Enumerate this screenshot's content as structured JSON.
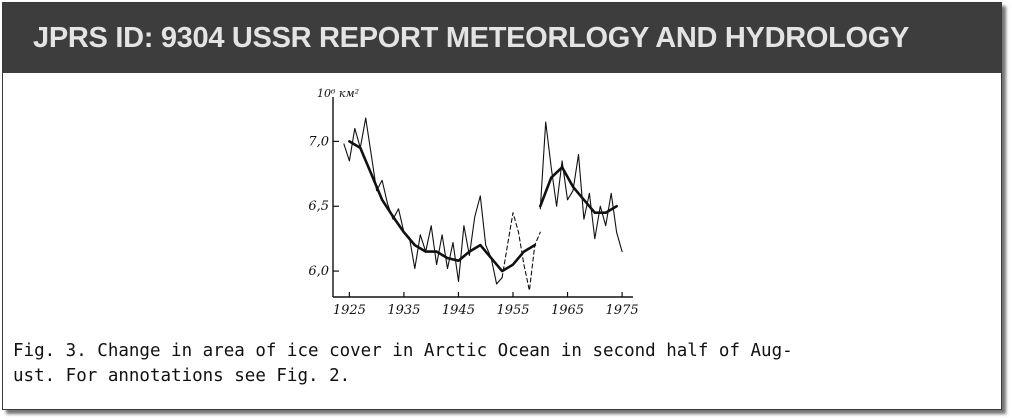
{
  "header": {
    "title": "JPRS ID: 9304 USSR REPORT METEORLOGY AND HYDROLOGY"
  },
  "figure": {
    "caption_line1": "Fig. 3. Change in area of ice cover in Arctic Ocean in second half of Aug-",
    "caption_line2": "ust. For annotations see Fig. 2."
  },
  "colors": {
    "header_bg": "#3d3d3d",
    "header_text": "#e4e4e4",
    "ink": "#111111"
  },
  "chart_data": {
    "type": "line",
    "title": "",
    "xlabel": "",
    "ylabel": "10⁶ км²",
    "xlim": [
      1922,
      1977
    ],
    "ylim": [
      5.8,
      7.25
    ],
    "x_ticks": [
      1925,
      1935,
      1945,
      1955,
      1965,
      1975
    ],
    "x_tick_labels": [
      "1925",
      "1935",
      "1945",
      "1955",
      "1965",
      "1975"
    ],
    "y_ticks": [
      6.0,
      6.5,
      7.0
    ],
    "y_tick_labels": [
      "6,0",
      "6,5",
      "7,0"
    ],
    "grid": false,
    "series": [
      {
        "style": "thin-solid",
        "x": [
          1924,
          1925,
          1926,
          1927,
          1928,
          1929,
          1930,
          1931,
          1932,
          1933,
          1934,
          1935,
          1936,
          1937,
          1938,
          1939,
          1940,
          1941,
          1942,
          1943,
          1944,
          1945,
          1946,
          1947,
          1948,
          1949,
          1950,
          1951,
          1952,
          1953
        ],
        "values": [
          6.98,
          6.85,
          7.1,
          6.95,
          7.18,
          6.9,
          6.62,
          6.7,
          6.52,
          6.4,
          6.48,
          6.3,
          6.26,
          6.02,
          6.28,
          6.15,
          6.35,
          6.05,
          6.28,
          6.02,
          6.22,
          5.92,
          6.35,
          6.12,
          6.42,
          6.58,
          6.2,
          6.1,
          5.9,
          5.95
        ]
      },
      {
        "style": "thin-dashed",
        "x": [
          1953,
          1954,
          1955,
          1956,
          1957,
          1958,
          1959,
          1960
        ],
        "values": [
          5.95,
          6.2,
          6.45,
          6.3,
          6.05,
          5.85,
          6.2,
          6.3
        ]
      },
      {
        "style": "thin-solid",
        "x": [
          1960,
          1961,
          1962,
          1963,
          1964,
          1965,
          1966,
          1967,
          1968,
          1969,
          1970,
          1971,
          1972,
          1973,
          1974,
          1975
        ],
        "values": [
          6.48,
          7.15,
          6.8,
          6.5,
          6.85,
          6.55,
          6.62,
          6.9,
          6.4,
          6.6,
          6.25,
          6.5,
          6.35,
          6.6,
          6.3,
          6.15
        ]
      },
      {
        "style": "thick-smooth",
        "x": [
          1925,
          1927,
          1929,
          1931,
          1933,
          1935,
          1937,
          1939,
          1941,
          1943,
          1945,
          1947,
          1949,
          1951,
          1953,
          1955,
          1957,
          1959
        ],
        "values": [
          7.0,
          6.95,
          6.75,
          6.55,
          6.42,
          6.3,
          6.2,
          6.15,
          6.15,
          6.1,
          6.08,
          6.15,
          6.2,
          6.1,
          6.0,
          6.05,
          6.15,
          6.2
        ]
      },
      {
        "style": "thick-smooth",
        "x": [
          1960,
          1962,
          1964,
          1966,
          1968,
          1970,
          1972,
          1974
        ],
        "values": [
          6.5,
          6.72,
          6.8,
          6.65,
          6.55,
          6.45,
          6.45,
          6.5
        ]
      }
    ]
  }
}
